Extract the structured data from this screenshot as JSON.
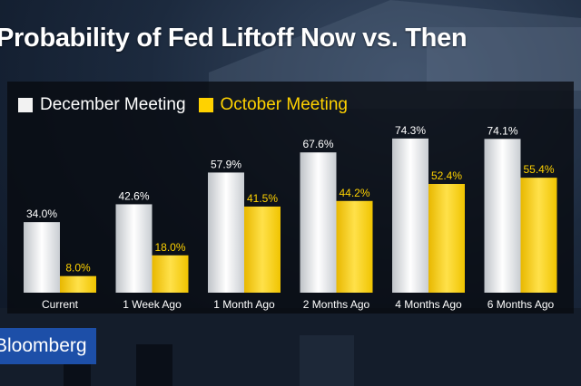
{
  "title": "Probability of Fed Liftoff Now vs. Then",
  "brand": "Bloomberg",
  "colors": {
    "december": "#f2f2f2",
    "october": "#ffd200",
    "background": "#0b1320",
    "panel": "#08090f",
    "brand_blue": "#1d4fa8"
  },
  "chart_data": {
    "type": "bar",
    "title": "Probability of Fed Liftoff Now vs. Then",
    "xlabel": "",
    "ylabel": "",
    "categories": [
      "Current",
      "1 Week Ago",
      "1 Month Ago",
      "2 Months Ago",
      "4 Months Ago",
      "6 Months Ago"
    ],
    "series": [
      {
        "name": "December Meeting",
        "values": [
          34.0,
          42.6,
          57.9,
          67.6,
          74.3,
          74.1
        ],
        "labels": [
          "34.0%",
          "42.6%",
          "57.9%",
          "67.6%",
          "74.3%",
          "74.1%"
        ]
      },
      {
        "name": "October Meeting",
        "values": [
          8.0,
          18.0,
          41.5,
          44.2,
          52.4,
          55.4
        ],
        "labels": [
          "8.0%",
          "18.0%",
          "41.5%",
          "44.2%",
          "52.4%",
          "55.4%"
        ]
      }
    ],
    "ylim": [
      0,
      100
    ],
    "grid": false,
    "legend_position": "top-left"
  }
}
